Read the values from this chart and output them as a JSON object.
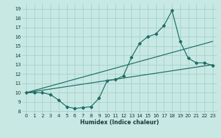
{
  "xlabel": "Humidex (Indice chaleur)",
  "bg_color": "#c8e8e4",
  "grid_color": "#a8d4cf",
  "line_color": "#1e6e65",
  "xlim": [
    -0.5,
    23.5
  ],
  "ylim": [
    7.8,
    19.5
  ],
  "xtick_vals": [
    0,
    1,
    2,
    3,
    4,
    5,
    6,
    7,
    8,
    9,
    10,
    11,
    12,
    13,
    14,
    15,
    16,
    17,
    18,
    19,
    20,
    21,
    22,
    23
  ],
  "ytick_vals": [
    8,
    9,
    10,
    11,
    12,
    13,
    14,
    15,
    16,
    17,
    18,
    19
  ],
  "line1_x": [
    0,
    1,
    2,
    3,
    4,
    5,
    6,
    7,
    8,
    9,
    10,
    11,
    12,
    13,
    14,
    15,
    16,
    17,
    18,
    19,
    20,
    21,
    22,
    23
  ],
  "line1_y": [
    10.0,
    10.0,
    10.0,
    9.8,
    9.2,
    8.5,
    8.3,
    8.4,
    8.5,
    9.4,
    11.3,
    11.4,
    11.8,
    13.8,
    15.3,
    16.0,
    16.3,
    17.2,
    18.8,
    15.5,
    13.7,
    13.2,
    13.2,
    12.9
  ],
  "line2_x": [
    0,
    23
  ],
  "line2_y": [
    10.0,
    13.0
  ],
  "line3_x": [
    0,
    23
  ],
  "line3_y": [
    10.0,
    15.5
  ]
}
